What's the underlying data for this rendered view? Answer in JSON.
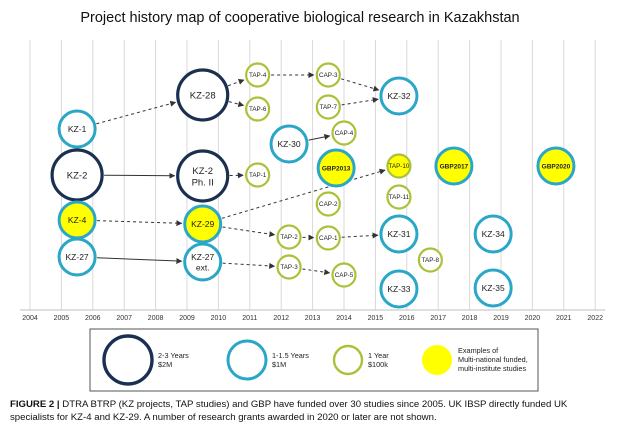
{
  "title": "Project history map of cooperative biological research in Kazakhstan",
  "years": [
    "2004",
    "2005",
    "2006",
    "2007",
    "2008",
    "2009",
    "2010",
    "2011",
    "2012",
    "2013",
    "2014",
    "2015",
    "2016",
    "2017",
    "2018",
    "2019",
    "2020",
    "2021",
    "2022"
  ],
  "colors": {
    "large": "#1b3050",
    "medium": "#2aa6c8",
    "small": "#a8c23a",
    "fill_yellow": "#ffff00",
    "grid": "#d9d9d9",
    "arrow": "#333333"
  },
  "nodes": [
    {
      "id": "KZ-1",
      "label": "KZ-1",
      "size": "medium",
      "year": 2005.5,
      "fill": "white"
    },
    {
      "id": "KZ-2",
      "label": "KZ-2",
      "size": "large",
      "year": 2005.5,
      "fill": "white"
    },
    {
      "id": "KZ-4",
      "label": "KZ-4",
      "size": "medium",
      "year": 2005.5,
      "fill": "yellow"
    },
    {
      "id": "KZ-27",
      "label": "KZ-27",
      "size": "medium",
      "year": 2005.5,
      "fill": "white"
    },
    {
      "id": "KZ-28",
      "label": "KZ-28",
      "size": "large",
      "year": 2009.5,
      "fill": "white"
    },
    {
      "id": "KZ-2-PhII",
      "label": "KZ-2",
      "label2": "Ph. II",
      "size": "large",
      "year": 2009.5,
      "fill": "white"
    },
    {
      "id": "KZ-29",
      "label": "KZ-29",
      "size": "medium",
      "year": 2009.5,
      "fill": "yellow"
    },
    {
      "id": "KZ-27-ext",
      "label": "KZ-27",
      "label2": "ext.",
      "size": "medium",
      "year": 2009.5,
      "fill": "white"
    },
    {
      "id": "TAP-4",
      "label": "TAP-4",
      "size": "small",
      "year": 2011.25,
      "fill": "white"
    },
    {
      "id": "TAP-6",
      "label": "TAP-6",
      "size": "small",
      "year": 2011.25,
      "fill": "white"
    },
    {
      "id": "KZ-30",
      "label": "KZ-30",
      "size": "medium",
      "year": 2012.25,
      "fill": "white"
    },
    {
      "id": "TAP-1",
      "label": "TAP-1",
      "size": "small",
      "year": 2011.25,
      "fill": "white"
    },
    {
      "id": "TAP-2",
      "label": "TAP-2",
      "size": "small",
      "year": 2012.25,
      "fill": "white"
    },
    {
      "id": "TAP-3",
      "label": "TAP-3",
      "size": "small",
      "year": 2012.25,
      "fill": "white"
    },
    {
      "id": "CAP-3",
      "label": "CAP-3",
      "size": "small",
      "year": 2013.5,
      "fill": "white"
    },
    {
      "id": "TAP-7",
      "label": "TAP-7",
      "size": "small",
      "year": 2013.5,
      "fill": "white"
    },
    {
      "id": "CAP-4",
      "label": "CAP-4",
      "size": "small",
      "year": 2014,
      "fill": "white"
    },
    {
      "id": "GBP2013",
      "label": "GBP2013",
      "size": "medium",
      "year": 2013.75,
      "fill": "yellow"
    },
    {
      "id": "CAP-2",
      "label": "CAP-2",
      "size": "small",
      "year": 2013.5,
      "fill": "white"
    },
    {
      "id": "CAP-1",
      "label": "CAP-1",
      "size": "small",
      "year": 2013.5,
      "fill": "white"
    },
    {
      "id": "CAP-5",
      "label": "CAP-5",
      "size": "small",
      "year": 2014,
      "fill": "white"
    },
    {
      "id": "KZ-32",
      "label": "KZ-32",
      "size": "medium",
      "year": 2015.75,
      "fill": "white"
    },
    {
      "id": "TAP-10",
      "label": "TAP-10",
      "size": "small",
      "year": 2015.75,
      "fill": "yellow"
    },
    {
      "id": "TAP-11",
      "label": "TAP-11",
      "size": "small",
      "year": 2015.75,
      "fill": "white"
    },
    {
      "id": "KZ-31",
      "label": "KZ-31",
      "size": "medium",
      "year": 2015.75,
      "fill": "white"
    },
    {
      "id": "KZ-33",
      "label": "KZ-33",
      "size": "medium",
      "year": 2015.75,
      "fill": "white"
    },
    {
      "id": "TAP-8",
      "label": "TAP-8",
      "size": "small",
      "year": 2016.75,
      "fill": "white"
    },
    {
      "id": "GBP2017",
      "label": "GBP2017",
      "size": "medium",
      "year": 2017.5,
      "fill": "yellow"
    },
    {
      "id": "KZ-34",
      "label": "KZ-34",
      "size": "medium",
      "year": 2018.75,
      "fill": "white"
    },
    {
      "id": "KZ-35",
      "label": "KZ-35",
      "size": "medium",
      "year": 2018.75,
      "fill": "white"
    },
    {
      "id": "GBP2020",
      "label": "GBP2020",
      "size": "medium",
      "year": 2020.75,
      "fill": "yellow"
    }
  ],
  "edges": [
    {
      "from": "KZ-1",
      "to": "KZ-28",
      "style": "dashed"
    },
    {
      "from": "KZ-2",
      "to": "KZ-2-PhII",
      "style": "solid"
    },
    {
      "from": "KZ-4",
      "to": "KZ-29",
      "style": "dashed"
    },
    {
      "from": "KZ-27",
      "to": "KZ-27-ext",
      "style": "solid"
    },
    {
      "from": "KZ-28",
      "to": "TAP-4",
      "style": "dashed"
    },
    {
      "from": "KZ-28",
      "to": "TAP-6",
      "style": "dashed"
    },
    {
      "from": "KZ-2-PhII",
      "to": "TAP-1",
      "style": "dashed"
    },
    {
      "from": "TAP-4",
      "to": "CAP-3",
      "style": "dashed"
    },
    {
      "from": "CAP-3",
      "to": "KZ-32",
      "style": "dashed"
    },
    {
      "from": "TAP-7",
      "to": "KZ-32",
      "style": "dashed"
    },
    {
      "from": "KZ-30",
      "to": "CAP-4",
      "style": "solid"
    },
    {
      "from": "KZ-29",
      "to": "TAP-10",
      "style": "dashed"
    },
    {
      "from": "KZ-29",
      "to": "TAP-2",
      "style": "dashed"
    },
    {
      "from": "TAP-2",
      "to": "CAP-1",
      "style": "dashed"
    },
    {
      "from": "CAP-1",
      "to": "KZ-31",
      "style": "dashed"
    },
    {
      "from": "KZ-27-ext",
      "to": "TAP-3",
      "style": "dashed"
    },
    {
      "from": "TAP-3",
      "to": "CAP-5",
      "style": "dashed"
    }
  ],
  "legend": [
    {
      "size": "large",
      "line1": "2-3 Years",
      "line2": "$2M",
      "fill": "white"
    },
    {
      "size": "medium",
      "line1": "1-1.5 Years",
      "line2": "$1M",
      "fill": "white"
    },
    {
      "size": "small",
      "line1": "1 Year",
      "line2": "$100k",
      "fill": "white"
    },
    {
      "size": "fill",
      "line1": "Examples of",
      "line2": "Multi-national funded,",
      "line3": "multi-institute studies",
      "fill": "yellow"
    }
  ],
  "caption": {
    "label": "FIGURE 2 |",
    "text": " DTRA BTRP (KZ projects, TAP studies) and GBP have funded over 30 studies since 2005. UK IBSP directly funded UK specialists for KZ-4 and KZ-29. A number of research grants awarded in 2020 or later are not shown."
  }
}
